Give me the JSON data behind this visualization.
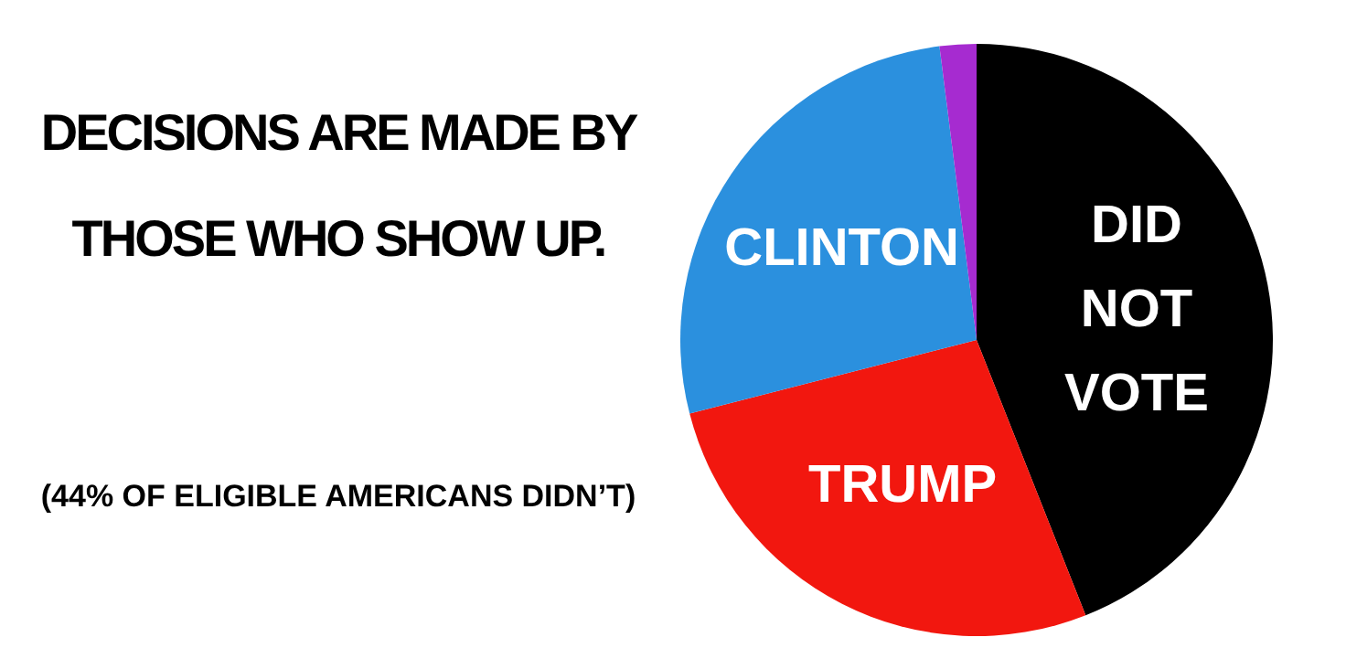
{
  "chart_data": {
    "type": "pie",
    "title": "DECISIONS ARE MADE BY THOSE WHO SHOW UP.",
    "annotations": [
      "(44% OF ELIGIBLE AMERICANS DIDN’T)"
    ],
    "categories": [
      "DID NOT VOTE",
      "TRUMP",
      "CLINTON",
      null
    ],
    "values": [
      44,
      27,
      27,
      2
    ],
    "colors": [
      "#000000",
      "#f2170f",
      "#2b90de",
      "#a62bd0"
    ],
    "legend": false
  }
}
